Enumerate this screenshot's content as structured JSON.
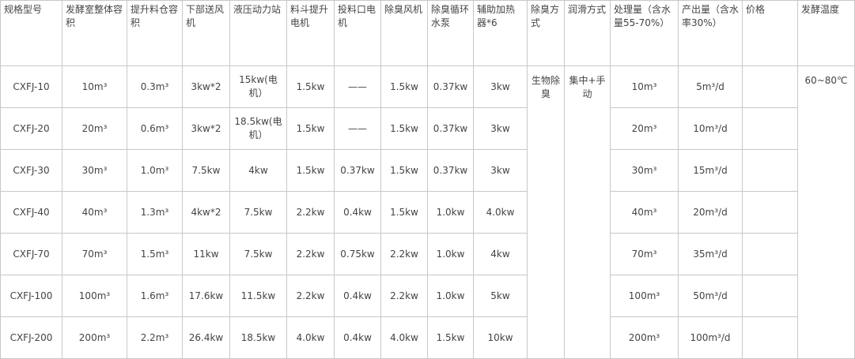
{
  "table": {
    "headers": [
      "规格型号",
      "发酵室整体容积",
      "提升料仓容积",
      "下部送风机",
      "液压动力站",
      "料斗提升电机",
      "投料口电机",
      "除臭风机",
      "除臭循环水泵",
      "辅助加热器*6",
      "除臭方式",
      "润滑方式",
      "处理量（含水量55-70%）",
      "产出量（含水率30%）",
      "价格",
      "发酵温度"
    ],
    "rows": [
      [
        "CXFJ-10",
        "10m³",
        "0.3m³",
        "3kw*2",
        "15kw(电机）",
        "1.5kw",
        "——",
        "1.5kw",
        "0.37kw",
        "3kw",
        "10m³",
        "5m³/d"
      ],
      [
        "CXFJ-20",
        "20m³",
        "0.6m³",
        "3kw*2",
        "18.5kw(电机）",
        "1.5kw",
        "——",
        "1.5kw",
        "0.37kw",
        "3kw",
        "20m³",
        "10m³/d"
      ],
      [
        "CXFJ-30",
        "30m³",
        "1.0m³",
        "7.5kw",
        "4kw",
        "1.5kw",
        "0.37kw",
        "1.5kw",
        "0.37kw",
        "3kw",
        "30m³",
        "15m³/d"
      ],
      [
        "CXFJ-40",
        "40m³",
        "1.3m³",
        "4kw*2",
        "7.5kw",
        "2.2kw",
        "0.4kw",
        "1.5kw",
        "1.0kw",
        "4.0kw",
        "40m³",
        "20m³/d"
      ],
      [
        "CXFJ-70",
        "70m³",
        "1.5m³",
        "11kw",
        "7.5kw",
        "2.2kw",
        "0.75kw",
        "2.2kw",
        "1.0kw",
        "4kw",
        "70m³",
        "35m³/d"
      ],
      [
        "CXFJ-100",
        "100m³",
        "1.6m³",
        "17.6kw",
        "11.5kw",
        "2.2kw",
        "0.4kw",
        "2.2kw",
        "1.0kw",
        "5kw",
        "100m³",
        "50m³/d"
      ],
      [
        "CXFJ-200",
        "200m³",
        "2.2m³",
        "26.4kw",
        "18.5kw",
        "4.0kw",
        "0.4kw",
        "4.0kw",
        "1.5kw",
        "10kw",
        "200m³",
        "100m³/d"
      ]
    ],
    "deodorization": "生物除臭",
    "lubrication": "集中+手动",
    "temperature": "60~80℃"
  }
}
